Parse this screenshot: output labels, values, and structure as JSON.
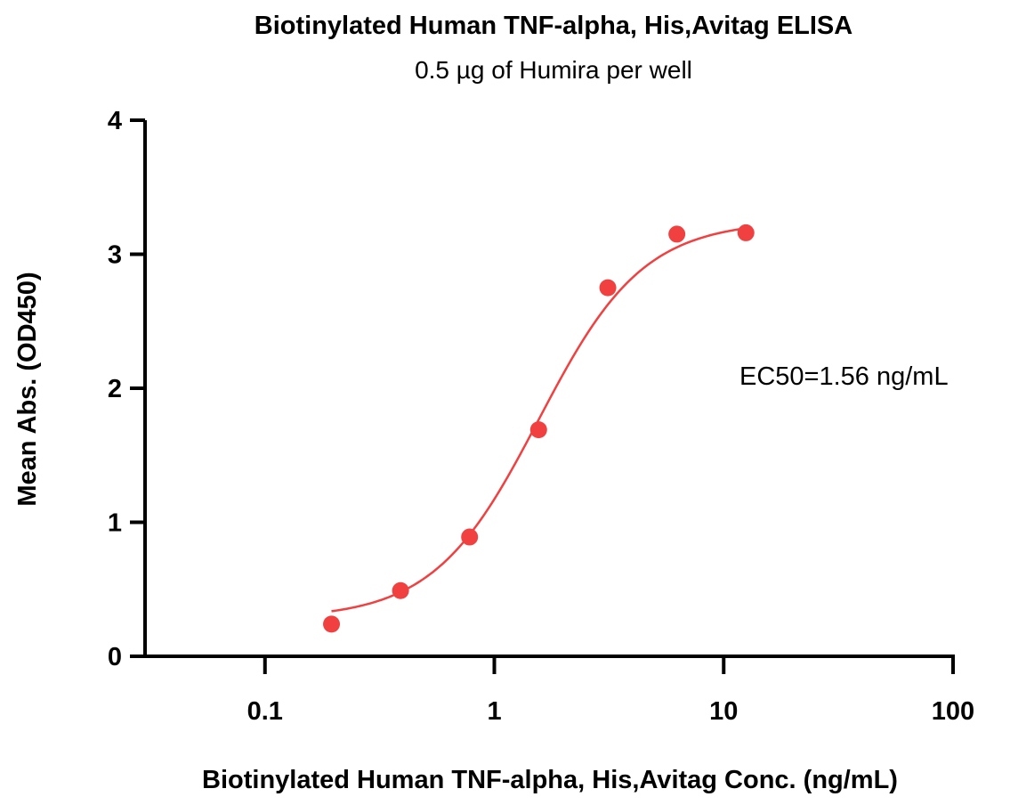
{
  "chart_data": {
    "type": "scatter",
    "title": "Biotinylated Human TNF-alpha, His,Avitag ELISA",
    "subtitle": "0.5 µg of Humira per well",
    "xlabel": "Biotinylated Human TNF-alpha, His,Avitag Conc. (ng/mL)",
    "ylabel": "Mean Abs. (OD450)",
    "xscale": "log",
    "xlim": [
      0.03,
      100
    ],
    "ylim": [
      0,
      4
    ],
    "x_ticks": [
      0.1,
      1,
      10,
      100
    ],
    "x_tick_labels": [
      "0.1",
      "1",
      "10",
      "100"
    ],
    "y_ticks": [
      0,
      1,
      2,
      3,
      4
    ],
    "y_tick_labels": [
      "0",
      "1",
      "2",
      "3",
      "4"
    ],
    "grid": false,
    "legend": "none",
    "series": [
      {
        "color": "#f04040",
        "x": [
          0.195,
          0.39,
          0.78,
          1.56,
          3.125,
          6.25,
          12.5
        ],
        "y": [
          0.24,
          0.49,
          0.89,
          1.69,
          2.75,
          3.15,
          3.16
        ]
      }
    ],
    "fit": {
      "model": "4PL",
      "bottom": 0.28,
      "top": 3.25,
      "ec50": 1.56,
      "hill": 1.9,
      "color": "#f04040"
    },
    "annotations": [
      {
        "text": "EC50=1.56 ng/mL"
      }
    ]
  }
}
